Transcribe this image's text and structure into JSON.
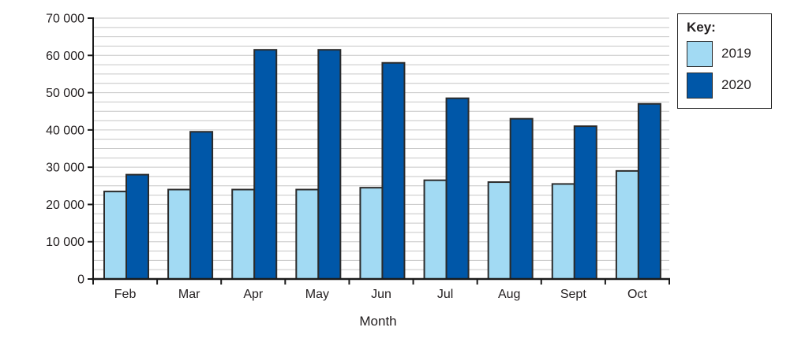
{
  "chart_data": {
    "type": "bar",
    "title": "",
    "xlabel": "Month",
    "ylabel": "",
    "categories": [
      "Feb",
      "Mar",
      "Apr",
      "May",
      "Jun",
      "Jul",
      "Aug",
      "Sept",
      "Oct"
    ],
    "series": [
      {
        "name": "2019",
        "color": "#a2daf3",
        "values": [
          23500,
          24000,
          24000,
          24000,
          24500,
          26500,
          26000,
          25500,
          29000
        ]
      },
      {
        "name": "2020",
        "color": "#0057a8",
        "values": [
          28000,
          39500,
          61500,
          61500,
          58000,
          48500,
          43000,
          41000,
          47000
        ]
      }
    ],
    "ylim": [
      0,
      70000
    ],
    "y_major_step": 10000,
    "y_minor_step": 2500,
    "y_tick_labels": [
      "0",
      "10 000",
      "20 000",
      "30 000",
      "40 000",
      "50 000",
      "60 000",
      "70 000"
    ],
    "grid": "horizontal-minor",
    "legend": {
      "title": "Key:",
      "position": "top-right"
    }
  },
  "colors": {
    "axis": "#1a1a1a",
    "gridline": "#c6c6c6",
    "bar_outline": "#2b2b2b",
    "text": "#231f20"
  }
}
